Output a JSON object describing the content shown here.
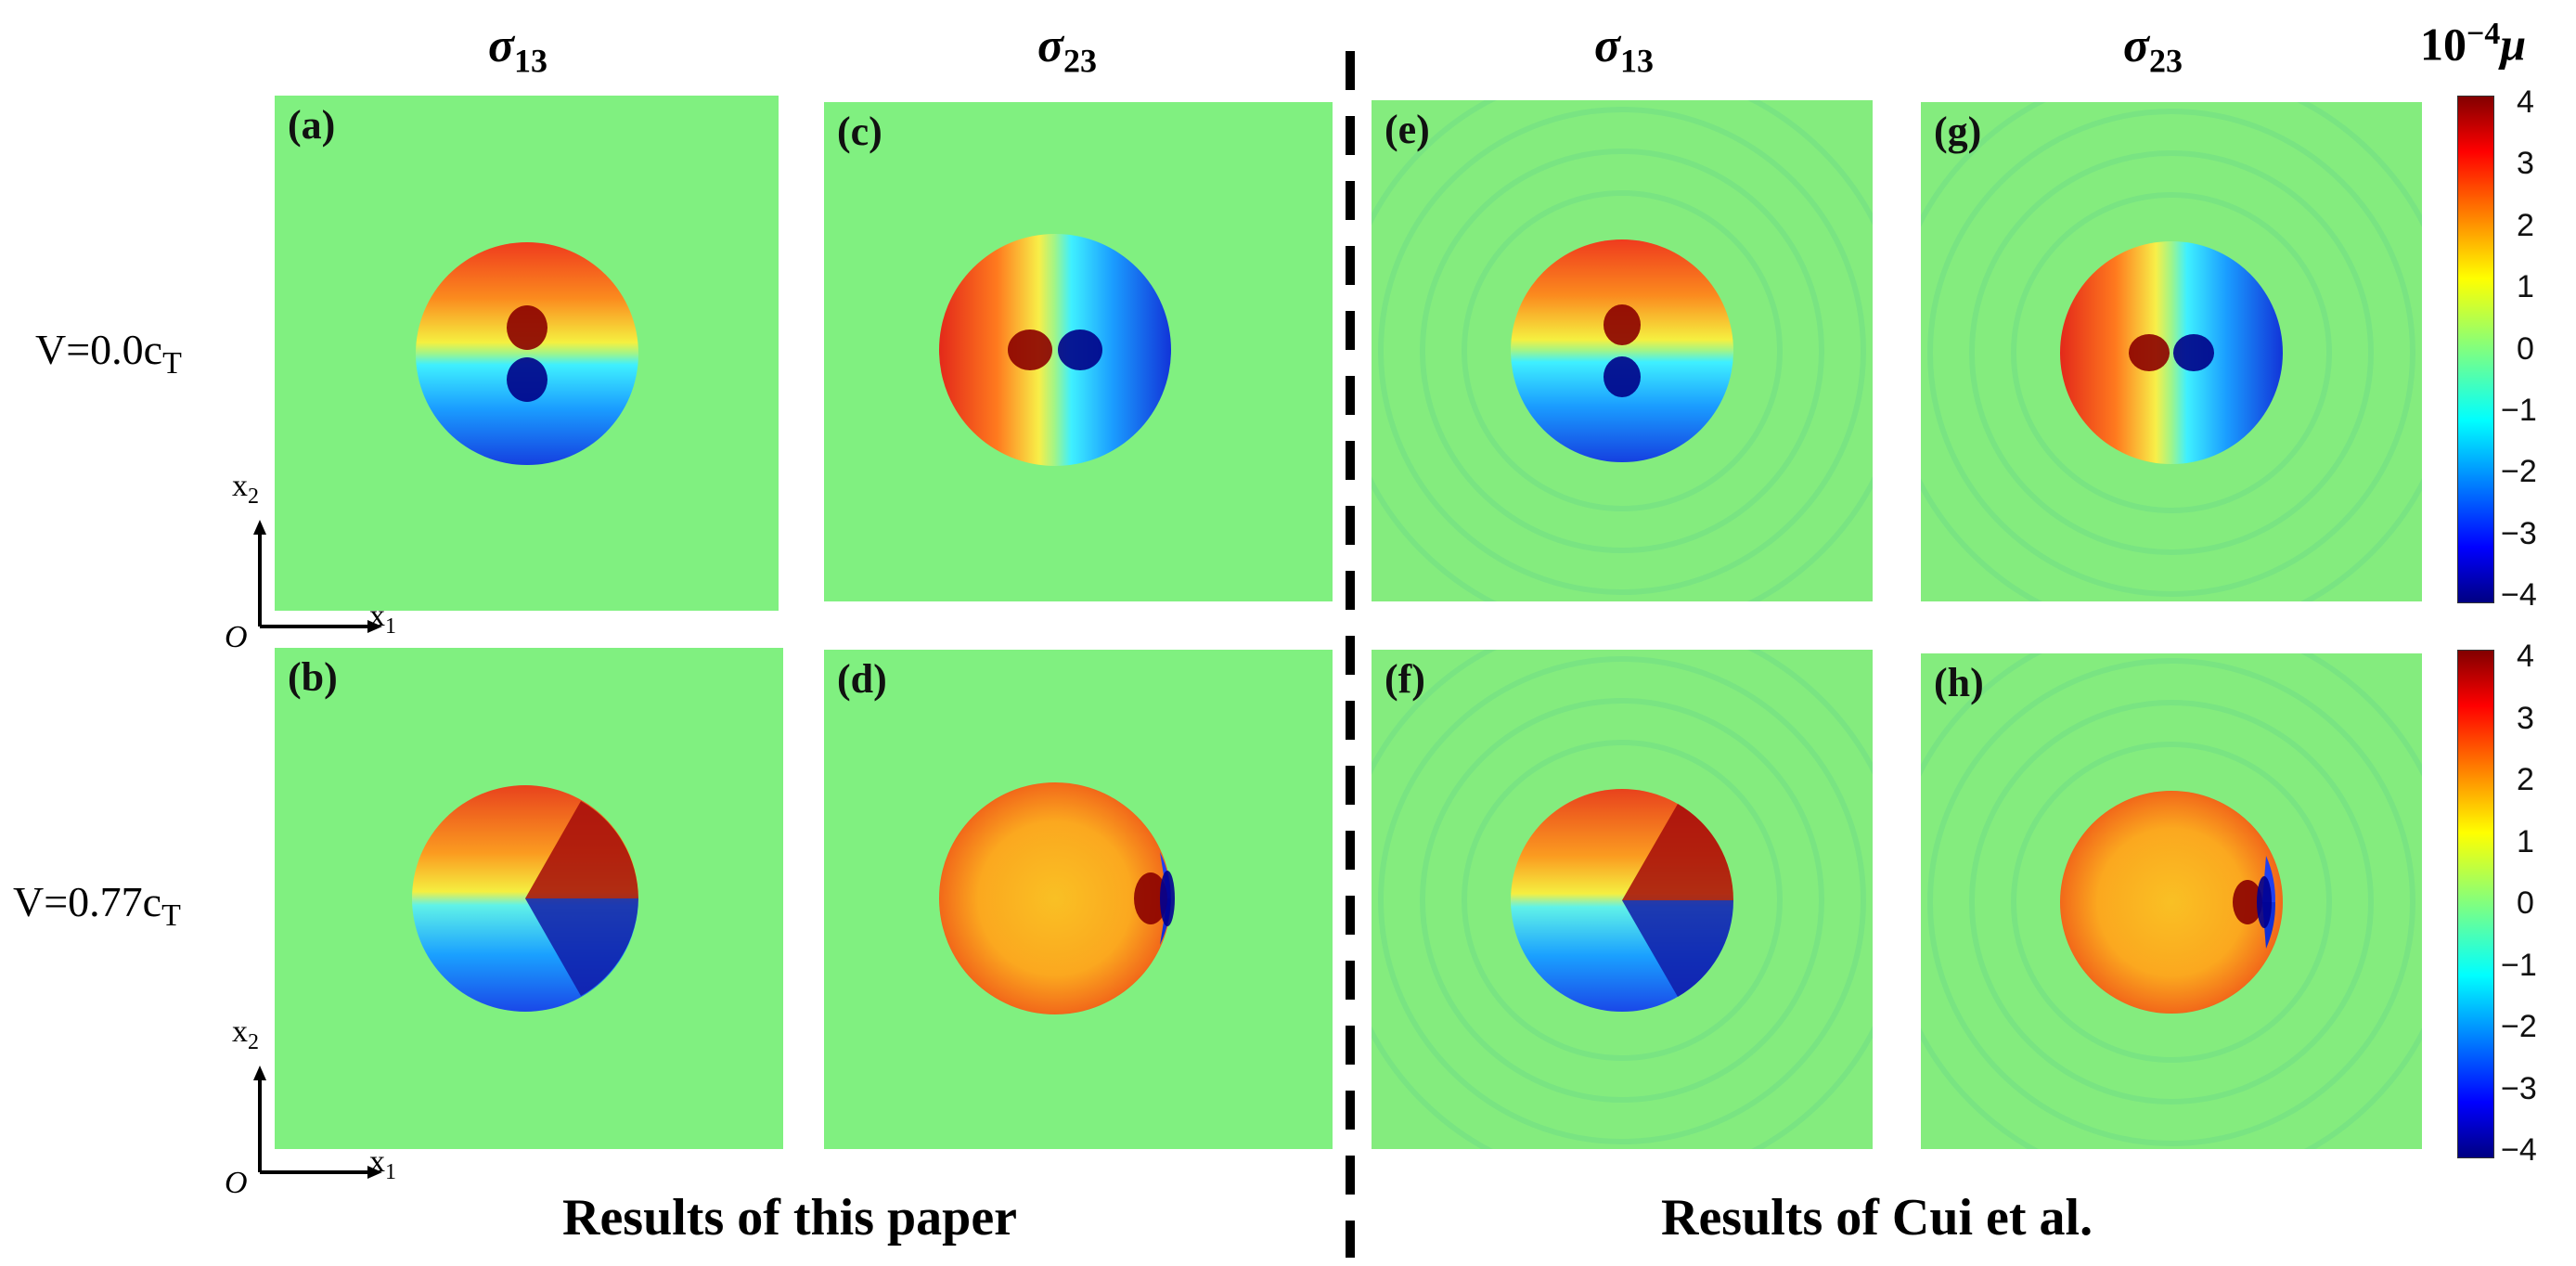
{
  "columns": {
    "col1": {
      "base": "σ",
      "sub": "13"
    },
    "col2": {
      "base": "σ",
      "sub": "23"
    },
    "col3": {
      "base": "σ",
      "sub": "13"
    },
    "col4": {
      "base": "σ",
      "sub": "23"
    }
  },
  "rows": {
    "row1": {
      "prefix": "V=0.0c",
      "sub": "T"
    },
    "row2": {
      "prefix": "V=0.77c",
      "sub": "T"
    }
  },
  "panels": {
    "a": "(a)",
    "b": "(b)",
    "c": "(c)",
    "d": "(d)",
    "e": "(e)",
    "f": "(f)",
    "g": "(g)",
    "h": "(h)"
  },
  "colorbar": {
    "unit_prefix": "10",
    "unit_exp": "−4",
    "unit_symbol": "μ",
    "ticks": [
      "4",
      "3",
      "2",
      "1",
      "0",
      "−1",
      "−2",
      "−3",
      "−4"
    ]
  },
  "axes": {
    "x": {
      "base": "x",
      "sub": "1"
    },
    "y": {
      "base": "x",
      "sub": "2"
    },
    "origin": "O"
  },
  "footer": {
    "left": "Results of  this paper",
    "right": "Results of  Cui et al."
  },
  "colors": {
    "background_field": "#80f080",
    "colormap": "jet"
  }
}
